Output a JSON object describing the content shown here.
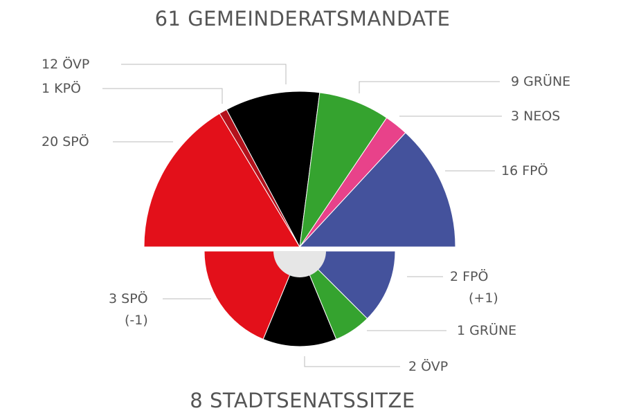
{
  "chart_data": [
    {
      "type": "pie",
      "variant": "half-donut-top",
      "title": "61 GEMEINDERATSMANDATE",
      "total": 61,
      "slices": [
        {
          "party": "SPÖ",
          "value": 20,
          "label": "20  SPÖ",
          "color": "#e3101a"
        },
        {
          "party": "KPÖ",
          "value": 1,
          "label": "1  KPÖ",
          "color": "#b3121c"
        },
        {
          "party": "ÖVP",
          "value": 12,
          "label": "12  ÖVP",
          "color": "#000000"
        },
        {
          "party": "GRÜNE",
          "value": 9,
          "label": "9  GRÜNE",
          "color": "#35a32f"
        },
        {
          "party": "NEOS",
          "value": 3,
          "label": "3 NEOS",
          "color": "#e8428a"
        },
        {
          "party": "FPÖ",
          "value": 16,
          "label": "16 FPÖ",
          "color": "#44529c"
        }
      ]
    },
    {
      "type": "pie",
      "variant": "half-donut-bottom",
      "title": "8 STADTSENATSSITZE",
      "total": 8,
      "slices": [
        {
          "party": "SPÖ",
          "value": 3,
          "label": "3 SPÖ",
          "change": "(-1)",
          "color": "#e3101a"
        },
        {
          "party": "ÖVP",
          "value": 2,
          "label": "2 ÖVP",
          "color": "#000000"
        },
        {
          "party": "GRÜNE",
          "value": 1,
          "label": "1 GRÜNE",
          "color": "#35a32f"
        },
        {
          "party": "FPÖ",
          "value": 2,
          "label": "2 FPÖ",
          "change": "(+1)",
          "color": "#44529c"
        }
      ]
    }
  ],
  "hole_color": "#e6e6e6"
}
